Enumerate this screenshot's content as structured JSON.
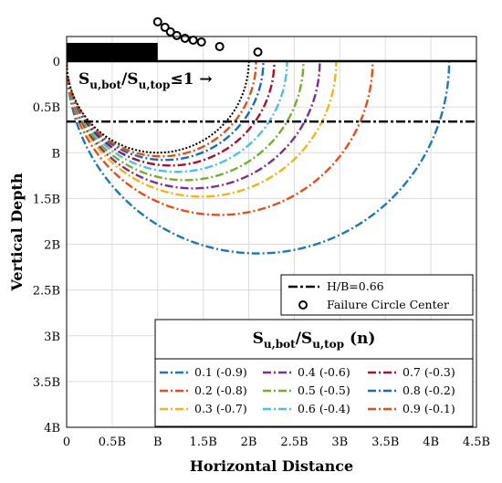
{
  "chart_data": {
    "type": "line",
    "xlabel": "Horizontal Distance",
    "ylabel": "Vertical Depth",
    "xlim": [
      0,
      4.5
    ],
    "ylim": [
      0,
      4
    ],
    "y_inverted": true,
    "grid": true,
    "xticks": [
      {
        "value": 0,
        "label": "0"
      },
      {
        "value": 0.5,
        "label": "0.5B"
      },
      {
        "value": 1,
        "label": "B"
      },
      {
        "value": 1.5,
        "label": "1.5B"
      },
      {
        "value": 2,
        "label": "2B"
      },
      {
        "value": 2.5,
        "label": "2.5B"
      },
      {
        "value": 3,
        "label": "3B"
      },
      {
        "value": 3.5,
        "label": "3.5B"
      },
      {
        "value": 4,
        "label": "4B"
      },
      {
        "value": 4.5,
        "label": "4.5B"
      }
    ],
    "yticks": [
      {
        "value": 0,
        "label": "0"
      },
      {
        "value": 0.5,
        "label": "0.5B"
      },
      {
        "value": 1,
        "label": "B"
      },
      {
        "value": 1.5,
        "label": "1.5B"
      },
      {
        "value": 2,
        "label": "2B"
      },
      {
        "value": 2.5,
        "label": "2.5B"
      },
      {
        "value": 3,
        "label": "3B"
      },
      {
        "value": 3.5,
        "label": "3.5B"
      },
      {
        "value": 4,
        "label": "4B"
      }
    ],
    "footing": {
      "x_start": 0,
      "x_end": 1.0,
      "thickness": 0.2
    },
    "surface_line_depth": 0,
    "hb_line": {
      "label": "H/B=0.66",
      "depth": 0.66,
      "color": "#000000"
    },
    "annotation": {
      "main": "S",
      "sub1": "u,bot",
      "slash": "/S",
      "sub2": "u,top",
      "rest": "≤1 →"
    },
    "legend_title": {
      "main": "S",
      "sub1": "u,bot",
      "slash": "/S",
      "sub2": "u,top",
      "rest": " (n)"
    },
    "circle_centers_label": "Failure Circle Center",
    "circle_centers": [
      {
        "x": 1.0,
        "y": -0.43
      },
      {
        "x": 1.08,
        "y": -0.37
      },
      {
        "x": 1.14,
        "y": -0.32
      },
      {
        "x": 1.21,
        "y": -0.28
      },
      {
        "x": 1.3,
        "y": -0.25
      },
      {
        "x": 1.39,
        "y": -0.23
      },
      {
        "x": 1.48,
        "y": -0.21
      },
      {
        "x": 1.68,
        "y": -0.16
      },
      {
        "x": 2.1,
        "y": -0.1
      }
    ],
    "black_circle": {
      "cx": 1.0,
      "r": 1.0,
      "color": "#000000"
    },
    "series": [
      {
        "name": "0.1 (-0.9)",
        "color": "#1f77b4",
        "cx": 2.1,
        "r": 2.1,
        "depth": 2.0
      },
      {
        "name": "0.2 (-0.8)",
        "color": "#e0501e",
        "cx": 1.68,
        "r": 1.68,
        "depth": 1.52
      },
      {
        "name": "0.3 (-0.7)",
        "color": "#f2b418",
        "cx": 1.48,
        "r": 1.48,
        "depth": 1.31
      },
      {
        "name": "0.4 (-0.6)",
        "color": "#7e2f8e",
        "cx": 1.39,
        "r": 1.39,
        "depth": 1.16
      },
      {
        "name": "0.5 (-0.5)",
        "color": "#77ac30",
        "cx": 1.3,
        "r": 1.3,
        "depth": 1.05
      },
      {
        "name": "0.6 (-0.4)",
        "color": "#4dbeee",
        "cx": 1.21,
        "r": 1.21,
        "depth": 0.93
      },
      {
        "name": "0.7 (-0.3)",
        "color": "#a2142f",
        "cx": 1.14,
        "r": 1.14,
        "depth": 0.79
      },
      {
        "name": "0.8 (-0.2)",
        "color": "#2167b5",
        "cx": 1.08,
        "r": 1.08,
        "depth": 0.72
      },
      {
        "name": "0.9 (-0.1)",
        "color": "#d95319",
        "cx": 1.04,
        "r": 1.04,
        "depth": 0.67
      }
    ]
  }
}
